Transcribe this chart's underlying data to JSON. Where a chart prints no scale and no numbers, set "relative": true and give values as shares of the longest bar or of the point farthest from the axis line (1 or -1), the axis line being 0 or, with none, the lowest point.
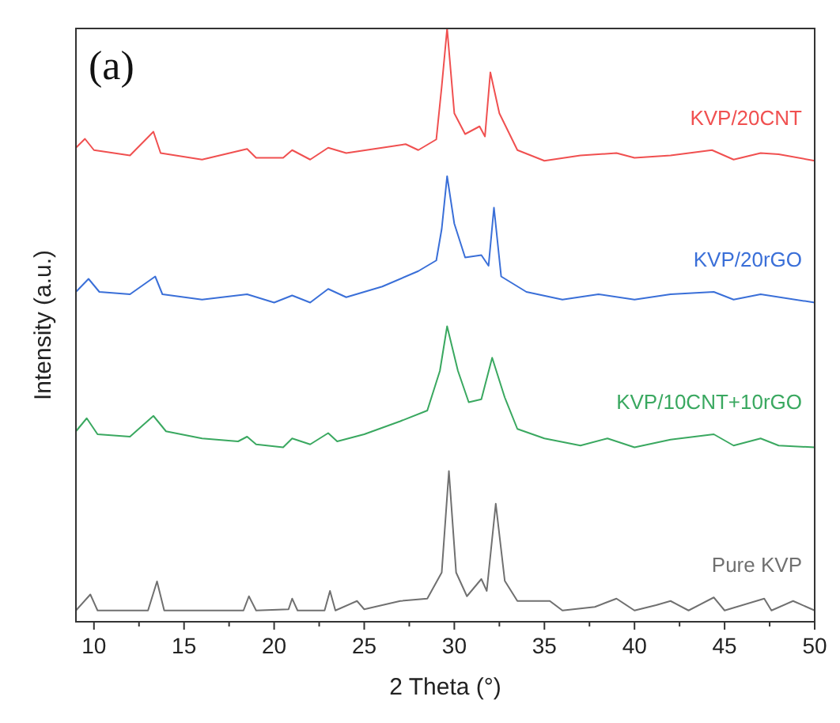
{
  "chart_data": {
    "type": "line",
    "relative": true,
    "xlabel": "2 Theta (°)",
    "ylabel": "Intensity (a.u.)",
    "annotations": [
      "(a)"
    ],
    "tick_labels": "x",
    "grid": false,
    "xlim": [
      9,
      50
    ],
    "xticks": [
      {
        "value": 10,
        "label": "10"
      },
      {
        "value": 12.5,
        "label": null
      },
      {
        "value": 15,
        "label": "15"
      },
      {
        "value": 17.5,
        "label": null
      },
      {
        "value": 20,
        "label": "20"
      },
      {
        "value": 22.5,
        "label": null
      },
      {
        "value": 25,
        "label": "25"
      },
      {
        "value": 27.5,
        "label": null
      },
      {
        "value": 30,
        "label": "30"
      },
      {
        "value": 32.5,
        "label": null
      },
      {
        "value": 35,
        "label": "35"
      },
      {
        "value": 37.5,
        "label": null
      },
      {
        "value": 40,
        "label": "40"
      },
      {
        "value": 42.5,
        "label": null
      },
      {
        "value": 45,
        "label": "45"
      },
      {
        "value": 47.5,
        "label": null
      },
      {
        "value": 50,
        "label": "50"
      }
    ],
    "series": [
      {
        "name": "KVP/20CNT",
        "color": "#f05050",
        "x": [
          9,
          9.5,
          10,
          12,
          13.3,
          13.7,
          16,
          18.5,
          19,
          20.5,
          21,
          22,
          23,
          24,
          26,
          27.3,
          28,
          29,
          29.3,
          29.6,
          30,
          30.6,
          31.4,
          31.7,
          32,
          32.5,
          33.5,
          35,
          37,
          39,
          40,
          42,
          44.3,
          45.5,
          47,
          48,
          50
        ],
        "values": [
          0.799,
          0.814,
          0.795,
          0.786,
          0.826,
          0.79,
          0.779,
          0.797,
          0.782,
          0.782,
          0.795,
          0.779,
          0.799,
          0.79,
          0.799,
          0.805,
          0.795,
          0.813,
          0.902,
          1,
          0.857,
          0.822,
          0.835,
          0.818,
          0.926,
          0.857,
          0.795,
          0.777,
          0.786,
          0.79,
          0.782,
          0.786,
          0.795,
          0.779,
          0.79,
          0.788,
          0.777
        ]
      },
      {
        "name": "KVP/20rGO",
        "color": "#3a6fd8",
        "x": [
          9,
          9.7,
          10.3,
          12,
          13.4,
          13.8,
          16,
          18.5,
          20,
          21,
          22,
          23,
          24,
          26,
          28,
          29,
          29.3,
          29.6,
          30,
          30.6,
          31.5,
          31.9,
          32.2,
          32.6,
          34,
          36,
          38,
          40,
          42,
          44.4,
          45.5,
          47,
          50
        ],
        "values": [
          0.556,
          0.578,
          0.556,
          0.552,
          0.582,
          0.552,
          0.543,
          0.552,
          0.538,
          0.55,
          0.538,
          0.561,
          0.547,
          0.565,
          0.591,
          0.609,
          0.662,
          0.751,
          0.671,
          0.614,
          0.618,
          0.6,
          0.698,
          0.582,
          0.556,
          0.543,
          0.552,
          0.543,
          0.552,
          0.556,
          0.543,
          0.552,
          0.538
        ]
      },
      {
        "name": "KVP/10CNT+10rGO",
        "color": "#3aa860",
        "x": [
          9,
          9.6,
          10.2,
          12,
          13.3,
          14,
          16,
          18,
          18.5,
          19,
          20.5,
          21,
          22,
          23,
          23.5,
          25,
          27,
          28.5,
          29.2,
          29.6,
          30.2,
          30.8,
          31.5,
          32.1,
          32.8,
          33.5,
          35,
          37,
          38.5,
          40,
          42,
          44.4,
          45.5,
          47,
          48,
          50
        ],
        "values": [
          0.321,
          0.343,
          0.316,
          0.312,
          0.347,
          0.321,
          0.309,
          0.304,
          0.312,
          0.299,
          0.294,
          0.309,
          0.299,
          0.318,
          0.304,
          0.316,
          0.338,
          0.356,
          0.423,
          0.498,
          0.423,
          0.37,
          0.375,
          0.445,
          0.378,
          0.325,
          0.309,
          0.297,
          0.309,
          0.294,
          0.307,
          0.316,
          0.297,
          0.309,
          0.297,
          0.294
        ]
      },
      {
        "name": "Pure KVP",
        "color": "#707070",
        "x": [
          9,
          9.8,
          10.2,
          13,
          13.5,
          13.9,
          18.3,
          18.6,
          19,
          20.8,
          21,
          21.3,
          22.8,
          23.1,
          23.4,
          24.6,
          25,
          27,
          28.5,
          29.3,
          29.7,
          30.1,
          30.7,
          31.5,
          31.8,
          32.3,
          32.8,
          33.5,
          35.3,
          36,
          37.8,
          39,
          40,
          41.2,
          42,
          43,
          44.4,
          45,
          47.2,
          47.6,
          48.8,
          50
        ],
        "values": [
          0.019,
          0.046,
          0.019,
          0.019,
          0.068,
          0.019,
          0.019,
          0.043,
          0.019,
          0.021,
          0.039,
          0.019,
          0.019,
          0.052,
          0.019,
          0.035,
          0.021,
          0.035,
          0.039,
          0.083,
          0.254,
          0.083,
          0.043,
          0.072,
          0.052,
          0.199,
          0.069,
          0.035,
          0.035,
          0.019,
          0.025,
          0.039,
          0.019,
          0.028,
          0.035,
          0.019,
          0.041,
          0.019,
          0.039,
          0.019,
          0.035,
          0.019
        ]
      }
    ]
  }
}
